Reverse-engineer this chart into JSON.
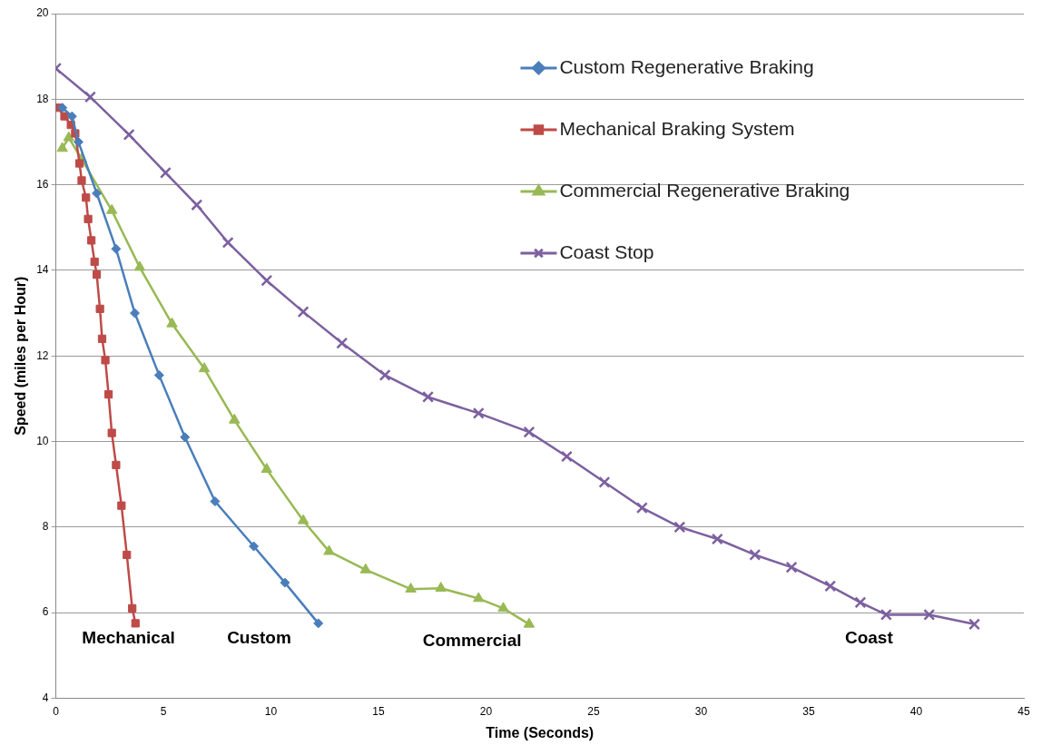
{
  "chart_data": {
    "type": "line",
    "xlabel": "Time (Seconds)",
    "ylabel": "Speed (miles per Hour)",
    "xlim": [
      0,
      45
    ],
    "xticks": [
      0,
      5,
      10,
      15,
      20,
      25,
      30,
      35,
      40,
      45
    ],
    "ylim": [
      4,
      20
    ],
    "yticks": [
      4,
      6,
      8,
      10,
      12,
      14,
      16,
      18,
      20
    ],
    "grid": "y",
    "legend": "top right",
    "series": [
      {
        "name": "Custom Regenerative Braking",
        "color": "#4a7ebb",
        "marker": "diamond",
        "x": [
          0.3,
          0.75,
          1.05,
          1.9,
          2.8,
          3.67,
          4.8,
          6.0,
          7.4,
          9.2,
          10.65,
          12.2
        ],
        "values": [
          17.8,
          17.6,
          17.0,
          15.8,
          14.5,
          13.0,
          11.55,
          10.1,
          8.6,
          7.55,
          6.7,
          5.75
        ]
      },
      {
        "name": "Mechanical Braking System",
        "color": "#be4b48",
        "marker": "square",
        "x": [
          0.1,
          0.4,
          0.7,
          0.9,
          1.1,
          1.2,
          1.4,
          1.5,
          1.65,
          1.8,
          1.9,
          2.05,
          2.15,
          2.3,
          2.45,
          2.6,
          2.8,
          3.05,
          3.3,
          3.55,
          3.7
        ],
        "values": [
          17.8,
          17.6,
          17.4,
          17.2,
          16.5,
          16.1,
          15.7,
          15.2,
          14.7,
          14.2,
          13.9,
          13.1,
          12.4,
          11.9,
          11.1,
          10.2,
          9.45,
          8.5,
          7.35,
          6.1,
          5.75
        ]
      },
      {
        "name": "Commercial Regenerative Braking",
        "color": "#98b954",
        "marker": "triangle",
        "x": [
          0.3,
          0.6,
          1.2,
          2.6,
          3.9,
          5.4,
          6.9,
          8.3,
          9.8,
          11.5,
          12.7,
          14.4,
          16.5,
          17.9,
          19.65,
          20.8,
          22.0
        ],
        "values": [
          16.85,
          17.1,
          16.6,
          15.4,
          14.07,
          12.75,
          11.7,
          10.5,
          9.35,
          8.15,
          7.43,
          7.0,
          6.55,
          6.57,
          6.33,
          6.1,
          5.73
        ]
      },
      {
        "name": "Coast Stop",
        "color": "#7d60a0",
        "marker": "cross",
        "x": [
          0,
          1.6,
          3.4,
          5.1,
          6.55,
          8.0,
          9.8,
          11.5,
          13.3,
          15.3,
          17.3,
          19.65,
          22.0,
          23.75,
          25.5,
          27.25,
          29.0,
          30.75,
          32.5,
          34.2,
          36.0,
          37.4,
          38.6,
          40.6,
          42.7
        ],
        "values": [
          18.72,
          18.05,
          17.17,
          16.28,
          15.53,
          14.65,
          13.76,
          13.03,
          12.3,
          11.55,
          11.04,
          10.66,
          10.22,
          9.65,
          9.05,
          8.45,
          8.0,
          7.72,
          7.35,
          7.06,
          6.62,
          6.24,
          5.95,
          5.95,
          5.73
        ]
      }
    ],
    "annotations": [
      "Mechanical",
      "Custom",
      "Commercial",
      "Coast"
    ]
  }
}
